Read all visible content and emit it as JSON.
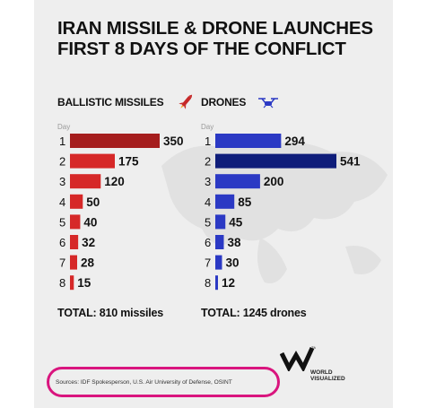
{
  "title_line1": "IRAN MISSILE & DRONE LAUNCHES",
  "title_line2": "FIRST 8 DAYS OF THE CONFLICT",
  "chart_data": [
    {
      "type": "bar",
      "orientation": "horizontal",
      "title": "BALLISTIC MISSILES",
      "icon": "missile-icon",
      "axis_label": "Day",
      "categories": [
        "1",
        "2",
        "3",
        "4",
        "5",
        "6",
        "7",
        "8"
      ],
      "values": [
        350,
        175,
        120,
        50,
        40,
        32,
        28,
        15
      ],
      "colors": [
        "#a51d1d",
        "#d62828",
        "#d62828",
        "#d62828",
        "#d62828",
        "#d62828",
        "#d62828",
        "#d62828"
      ],
      "total_label": "TOTAL: 810 missiles"
    },
    {
      "type": "bar",
      "orientation": "horizontal",
      "title": "DRONES",
      "icon": "drone-icon",
      "axis_label": "Day",
      "categories": [
        "1",
        "2",
        "3",
        "4",
        "5",
        "6",
        "7",
        "8"
      ],
      "values": [
        294,
        541,
        200,
        85,
        45,
        38,
        30,
        12
      ],
      "colors": [
        "#2b39c4",
        "#0f1d7a",
        "#2b39c4",
        "#2b39c4",
        "#2b39c4",
        "#2b39c4",
        "#2b39c4",
        "#2b39c4"
      ],
      "total_label": "TOTAL: 1245 drones"
    }
  ],
  "sources": "Sources: IDF Spokesperson, U.S. Air University of Defense, OSINT",
  "logo_line1": "WORLD",
  "logo_line2": "VISUALIZED"
}
